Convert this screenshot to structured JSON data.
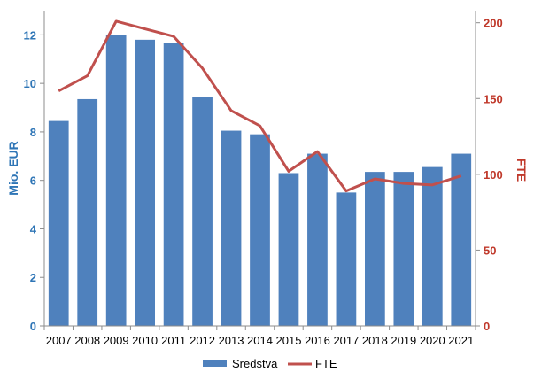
{
  "chart_data": {
    "type": "bar",
    "categories": [
      "2007",
      "2008",
      "2009",
      "2010",
      "2011",
      "2012",
      "2013",
      "2014",
      "2015",
      "2016",
      "2017",
      "2018",
      "2019",
      "2020",
      "2021"
    ],
    "series": [
      {
        "name": "Sredstva",
        "type": "bar",
        "axis": "left",
        "color": "#4f81bd",
        "values": [
          8.45,
          9.35,
          12.0,
          11.8,
          11.65,
          9.45,
          8.05,
          7.9,
          6.3,
          7.1,
          5.5,
          6.35,
          6.35,
          6.55,
          7.1
        ]
      },
      {
        "name": "FTE",
        "type": "line",
        "axis": "right",
        "color": "#c0504d",
        "values": [
          155,
          165,
          201,
          196,
          191,
          170,
          142,
          132,
          102,
          115,
          89,
          97,
          94,
          93,
          99
        ]
      }
    ],
    "ylabel": "Mio. EUR",
    "ylabel_right": "FTE",
    "ylim": [
      0,
      13
    ],
    "ylim_right": [
      0,
      208
    ],
    "yticks": [
      0,
      2,
      4,
      6,
      8,
      10,
      12
    ],
    "yticks_right": [
      0,
      50,
      100,
      150,
      200
    ],
    "grid": false,
    "legend": "bottom-center",
    "colors": {
      "left_axis": "#2e75b6",
      "right_axis": "#c0392b"
    }
  }
}
